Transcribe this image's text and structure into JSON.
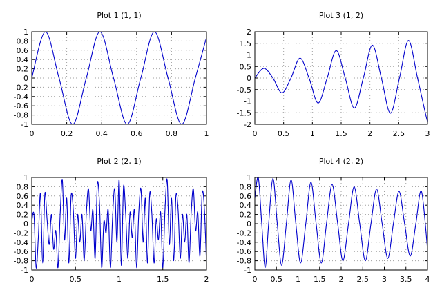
{
  "chart_data": [
    {
      "type": "line",
      "title": "Plot 1 (1, 1)",
      "xlabel": "",
      "ylabel": "",
      "xlim": [
        0,
        1
      ],
      "ylim": [
        -1,
        1
      ],
      "xticks": [
        0,
        0.2,
        0.4,
        0.6,
        0.8,
        1
      ],
      "xtick_labels": [
        "0",
        "0.2",
        "0.4",
        "0.6",
        "0.8",
        "1"
      ],
      "yticks": [
        -1,
        -0.8,
        -0.6,
        -0.4,
        -0.2,
        0,
        0.2,
        0.4,
        0.6,
        0.8,
        1
      ],
      "ytick_labels": [
        "-1",
        "-0.8",
        "-0.6",
        "-0.4",
        "-0.2",
        "0",
        "0.2",
        "0.4",
        "0.6",
        "0.8",
        "1"
      ],
      "grid": true,
      "color": "#0000cc",
      "series": [
        {
          "x": [
            0,
            0.078,
            0.156,
            0.234,
            0.312,
            0.39,
            0.468,
            0.546,
            0.624,
            0.702,
            0.78,
            0.858,
            0.936,
            1
          ],
          "y": [
            0,
            1,
            0,
            -1,
            0,
            1,
            0,
            -1,
            0,
            1,
            0,
            -1,
            0,
            0.88
          ]
        }
      ]
    },
    {
      "type": "line",
      "title": "Plot 2 (2, 1)",
      "xlabel": "",
      "ylabel": "",
      "xlim": [
        0,
        2
      ],
      "ylim": [
        -1,
        1
      ],
      "xticks": [
        0,
        0.5,
        1,
        1.5,
        2
      ],
      "xtick_labels": [
        "0",
        "0.5",
        "1",
        "1.5",
        "2"
      ],
      "yticks": [
        -1,
        -0.8,
        -0.6,
        -0.4,
        -0.2,
        0,
        0.2,
        0.4,
        0.6,
        0.8,
        1
      ],
      "ytick_labels": [
        "-1",
        "-0.8",
        "-0.6",
        "-0.4",
        "-0.2",
        "0",
        "0.2",
        "0.4",
        "0.6",
        "0.8",
        "1"
      ],
      "grid": true,
      "color": "#0000cc",
      "series": [
        {
          "x": [
            0,
            0.025,
            0.05,
            0.075,
            0.1,
            0.125,
            0.15,
            0.175,
            0.2,
            0.225,
            0.25,
            0.275,
            0.3,
            0.325,
            0.35,
            0.375,
            0.4,
            0.425,
            0.45,
            0.475,
            0.5,
            0.525,
            0.55,
            0.575,
            0.6,
            0.625,
            0.65,
            0.675,
            0.7,
            0.725,
            0.75,
            0.775,
            0.8,
            0.825,
            0.85,
            0.875,
            0.9,
            0.925,
            0.95,
            0.975,
            1,
            1.025,
            1.05,
            1.075,
            1.1,
            1.125,
            1.15,
            1.175,
            1.2,
            1.225,
            1.25,
            1.275,
            1.3,
            1.325,
            1.35,
            1.375,
            1.4,
            1.425,
            1.45,
            1.475,
            1.5,
            1.525,
            1.55,
            1.575,
            1.6,
            1.625,
            1.65,
            1.675,
            1.7,
            1.725,
            1.75,
            1.775,
            1.8,
            1.825,
            1.85,
            1.875,
            1.9,
            1.925,
            1.95,
            1.975,
            2
          ],
          "y": [
            0.05,
            0.2,
            -0.95,
            -0.3,
            0.65,
            -0.85,
            0.65,
            0.1,
            -0.45,
            0.2,
            -0.55,
            -0.15,
            -0.95,
            0.2,
            0.95,
            -0.35,
            0.55,
            -0.85,
            0.6,
            0.3,
            -0.75,
            0.2,
            -0.4,
            0.2,
            -0.8,
            0.25,
            0.75,
            -0.15,
            0.3,
            -0.75,
            0.85,
            0.45,
            -0.95,
            0.05,
            -0.2,
            0.3,
            -0.95,
            0.15,
            0.75,
            -0.4,
            0.95,
            -0.9,
            0.8,
            0.2,
            -0.75,
            0.25,
            -0.3,
            0.3,
            -0.95,
            0.25,
            0.75,
            -0.4,
            0.55,
            -0.85,
            0.65,
            0.2,
            -0.85,
            0.1,
            -0.35,
            0.25,
            -0.95,
            0.3,
            0.95,
            -0.45,
            0.55,
            -0.8,
            0.6,
            0.3,
            -0.75,
            0.2,
            -0.4,
            0.2,
            -0.85,
            0.25,
            0.75,
            -0.15,
            0.25,
            -0.7,
            0.65,
            0.35,
            -0.9
          ]
        }
      ]
    },
    {
      "type": "line",
      "title": "Plot 3 (1, 2)",
      "xlabel": "",
      "ylabel": "",
      "xlim": [
        0,
        3
      ],
      "ylim": [
        -2,
        2
      ],
      "xticks": [
        0,
        0.5,
        1,
        1.5,
        2,
        2.5,
        3
      ],
      "xtick_labels": [
        "0",
        "0.5",
        "1",
        "1.5",
        "2",
        "2.5",
        "3"
      ],
      "yticks": [
        -2,
        -1.5,
        -1,
        -0.5,
        0,
        0.5,
        1,
        1.5,
        2
      ],
      "ytick_labels": [
        "-2",
        "-1.5",
        "-1",
        "-0.5",
        "0",
        "0.5",
        "1",
        "1.5",
        "2"
      ],
      "grid": true,
      "color": "#0000cc",
      "series": [
        {
          "x": [
            0,
            0.157,
            0.314,
            0.471,
            0.628,
            0.785,
            0.942,
            1.1,
            1.257,
            1.414,
            1.571,
            1.728,
            1.885,
            2.042,
            2.199,
            2.356,
            2.513,
            2.67,
            2.827,
            2.985,
            3
          ],
          "y": [
            0,
            0.42,
            0,
            -0.64,
            0,
            0.86,
            0,
            -1.08,
            0,
            1.19,
            0,
            -1.3,
            0,
            1.42,
            0,
            -1.52,
            0,
            1.62,
            0,
            -1.75,
            -1.72
          ]
        }
      ]
    },
    {
      "type": "line",
      "title": "Plot 4 (2, 2)",
      "xlabel": "",
      "ylabel": "",
      "xlim": [
        0,
        4
      ],
      "ylim": [
        -1,
        1
      ],
      "xticks": [
        0,
        0.5,
        1,
        1.5,
        2,
        2.5,
        3,
        3.5,
        4
      ],
      "xtick_labels": [
        "0",
        "0.5",
        "1",
        "1.5",
        "2",
        "2.5",
        "3",
        "3.5",
        "4"
      ],
      "yticks": [
        -1,
        -0.8,
        -0.6,
        -0.4,
        -0.2,
        0,
        0.2,
        0.4,
        0.6,
        0.8,
        1
      ],
      "ytick_labels": [
        "-1",
        "-0.8",
        "-0.6",
        "-0.4",
        "-0.2",
        "0",
        "0.2",
        "0.4",
        "0.6",
        "0.8",
        "1"
      ],
      "grid": true,
      "color": "#0000cc",
      "series": [
        {
          "x": [
            0,
            0.08,
            0.16,
            0.24,
            0.32,
            0.42,
            0.52,
            0.62,
            0.73,
            0.84,
            0.95,
            1.06,
            1.18,
            1.3,
            1.42,
            1.54,
            1.66,
            1.79,
            1.92,
            2.04,
            2.17,
            2.3,
            2.43,
            2.56,
            2.69,
            2.82,
            2.95,
            3.08,
            3.21,
            3.34,
            3.47,
            3.6,
            3.73,
            3.86,
            4
          ],
          "y": [
            0.55,
            1,
            0,
            -0.95,
            0,
            0.98,
            0,
            -0.9,
            0,
            0.95,
            0,
            -0.85,
            0,
            0.9,
            0,
            -0.85,
            0,
            0.85,
            0,
            -0.8,
            0,
            0.8,
            0,
            -0.8,
            0,
            0.75,
            0,
            -0.75,
            0,
            0.7,
            0,
            -0.7,
            0,
            0.7,
            -0.55
          ]
        }
      ]
    }
  ]
}
